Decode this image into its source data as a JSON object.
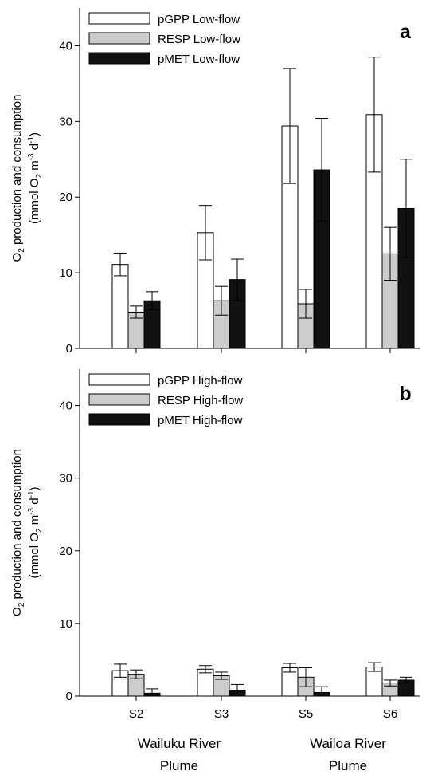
{
  "chart_data": [
    {
      "type": "bar",
      "panel_label": "a",
      "ylabel_main": "O",
      "ylabel_sub": "2",
      "ylabel_rest": " production and consumption",
      "ylabel_unit_prefix": "(mmol O",
      "ylabel_unit_sub": "2",
      "ylabel_unit_m": " m",
      "ylabel_unit_sup1": "-3",
      "ylabel_unit_d": " d",
      "ylabel_unit_sup2": "-1",
      "ylabel_unit_close": ")",
      "ylim": [
        0,
        45
      ],
      "yticks": [
        "0",
        "10",
        "20",
        "30",
        "40"
      ],
      "ytick_values": [
        0,
        10,
        20,
        30,
        40
      ],
      "categories": [
        "S2",
        "S3",
        "S5",
        "S6"
      ],
      "legend_position": "top-left",
      "series": [
        {
          "name": "pGPP Low-flow",
          "color": "#ffffff",
          "values": [
            11.1,
            15.3,
            29.4,
            30.9
          ],
          "errors": [
            1.5,
            3.6,
            7.6,
            7.6
          ]
        },
        {
          "name": "RESP Low-flow",
          "color": "#cccccc",
          "values": [
            4.8,
            6.3,
            5.9,
            12.5
          ],
          "errors": [
            0.8,
            1.9,
            1.9,
            3.5
          ]
        },
        {
          "name": "pMET Low-flow",
          "color": "#111111",
          "values": [
            6.3,
            9.1,
            23.6,
            18.5
          ],
          "errors": [
            1.2,
            2.7,
            6.8,
            6.5
          ]
        }
      ]
    },
    {
      "type": "bar",
      "panel_label": "b",
      "ylabel_main": "O",
      "ylabel_sub": "2",
      "ylabel_rest": " production and consumption",
      "ylabel_unit_prefix": "(mmol O",
      "ylabel_unit_sub": "2",
      "ylabel_unit_m": " m",
      "ylabel_unit_sup1": "-3",
      "ylabel_unit_d": " d",
      "ylabel_unit_sup2": "-1",
      "ylabel_unit_close": ")",
      "ylim": [
        0,
        45
      ],
      "yticks": [
        "0",
        "10",
        "20",
        "30",
        "40"
      ],
      "ytick_values": [
        0,
        10,
        20,
        30,
        40
      ],
      "categories": [
        "S2",
        "S3",
        "S5",
        "S6"
      ],
      "legend_position": "top-left",
      "series": [
        {
          "name": "pGPP High-flow",
          "color": "#ffffff",
          "values": [
            3.5,
            3.7,
            3.9,
            4.0
          ],
          "errors": [
            0.9,
            0.5,
            0.6,
            0.6
          ]
        },
        {
          "name": "RESP High-flow",
          "color": "#cccccc",
          "values": [
            3.0,
            2.8,
            2.6,
            1.8
          ],
          "errors": [
            0.6,
            0.5,
            1.3,
            0.4
          ]
        },
        {
          "name": "pMET High-flow",
          "color": "#111111",
          "values": [
            0.4,
            0.8,
            0.5,
            2.2
          ],
          "errors": [
            0.6,
            0.8,
            0.8,
            0.4
          ]
        }
      ]
    }
  ],
  "groups": [
    {
      "line1": "Wailuku River",
      "line2": "Plume"
    },
    {
      "line1": "Wailoa River",
      "line2": "Plume"
    }
  ]
}
